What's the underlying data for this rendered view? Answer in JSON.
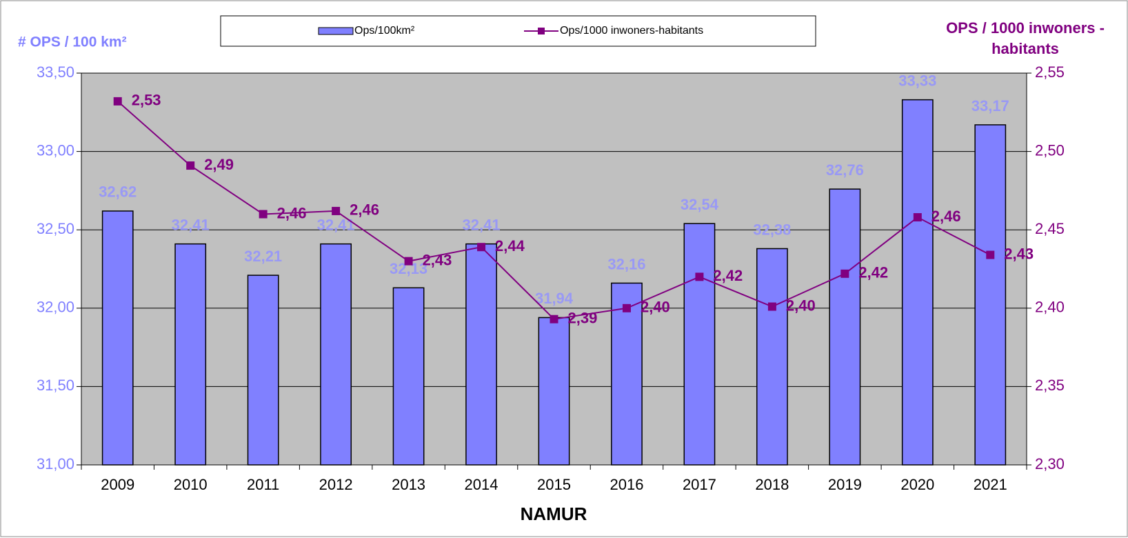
{
  "chart_data": {
    "type": "bar",
    "xlabel": "NAMUR",
    "ylabel": "# OPS / 100 km²",
    "y2label": "OPS / 1000 inwoners - habitants",
    "categories": [
      "2009",
      "2010",
      "2011",
      "2012",
      "2013",
      "2014",
      "2015",
      "2016",
      "2017",
      "2018",
      "2019",
      "2020",
      "2021"
    ],
    "series": [
      {
        "name": "Ops/100km²",
        "type": "bar",
        "color": "#8080ff",
        "values": [
          32.62,
          32.41,
          32.21,
          32.41,
          32.13,
          32.41,
          31.94,
          32.16,
          32.54,
          32.38,
          32.76,
          33.33,
          33.17
        ],
        "value_labels": [
          "32,62",
          "32,41",
          "32,21",
          "32,41",
          "32,13",
          "32,41",
          "31,94",
          "32,16",
          "32,54",
          "32,38",
          "32,76",
          "33,33",
          "33,17"
        ]
      },
      {
        "name": "Ops/1000 inwoners-habitants",
        "type": "line",
        "axis": "y2",
        "color": "#800080",
        "values": [
          2.532,
          2.491,
          2.46,
          2.462,
          2.43,
          2.439,
          2.393,
          2.4,
          2.42,
          2.401,
          2.422,
          2.458,
          2.434
        ],
        "value_labels": [
          "2,53",
          "2,49",
          "2,46",
          "2,46",
          "2,43",
          "2,44",
          "2,39",
          "2,40",
          "2,42",
          "2,40",
          "2,42",
          "2,46",
          "2,43"
        ]
      }
    ],
    "ylim": [
      31,
      33.5
    ],
    "yticks": [
      {
        "value": 31,
        "label": "31,00"
      },
      {
        "value": 31.5,
        "label": "31,50"
      },
      {
        "value": 32,
        "label": "32,00"
      },
      {
        "value": 32.5,
        "label": "32,50"
      },
      {
        "value": 33,
        "label": "33,00"
      },
      {
        "value": 33.5,
        "label": "33,50"
      }
    ],
    "y2lim": [
      2.3,
      2.55
    ],
    "y2ticks": [
      {
        "value": 2.3,
        "label": "2,30"
      },
      {
        "value": 2.35,
        "label": "2,35"
      },
      {
        "value": 2.4,
        "label": "2,40"
      },
      {
        "value": 2.45,
        "label": "2,45"
      },
      {
        "value": 2.5,
        "label": "2,50"
      },
      {
        "value": 2.55,
        "label": "2,55"
      }
    ],
    "grid": true,
    "legend": "top"
  }
}
